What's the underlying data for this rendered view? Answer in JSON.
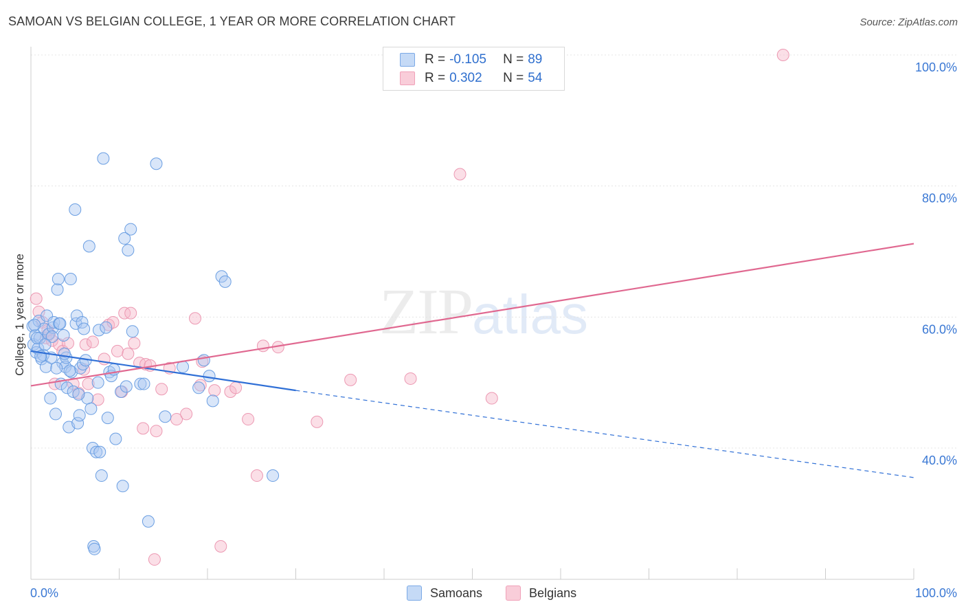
{
  "header": {
    "title": "SAMOAN VS BELGIAN COLLEGE, 1 YEAR OR MORE CORRELATION CHART",
    "source": "Source: ZipAtlas.com"
  },
  "watermark": {
    "zip": "ZIP",
    "atlas": "atlas"
  },
  "legend": {
    "rows": [
      {
        "r_label": "R =",
        "r_value": "-0.105",
        "n_label": "N =",
        "n_value": "89",
        "color": "#a9c8f0"
      },
      {
        "r_label": "R =",
        "r_value": "0.302",
        "n_label": "N =",
        "n_value": "54",
        "color": "#f6b8c9"
      }
    ]
  },
  "bottom_legend": {
    "samoans": "Samoans",
    "belgians": "Belgians"
  },
  "chart_data": {
    "type": "scatter",
    "title": "SAMOAN VS BELGIAN COLLEGE, 1 YEAR OR MORE CORRELATION CHART",
    "xlabel": "",
    "ylabel": "College, 1 year or more",
    "xlim": [
      0,
      100
    ],
    "ylim": [
      18,
      102
    ],
    "x_tick_labels": [
      "0.0%",
      "100.0%"
    ],
    "y_ticks": [
      40,
      60,
      80,
      100
    ],
    "y_tick_labels": [
      "40.0%",
      "60.0%",
      "80.0%",
      "100.0%"
    ],
    "colors": {
      "samoans": "#7aa9e6",
      "belgians": "#f0a0b8",
      "samoans_line": "#2f6fd6",
      "belgians_line": "#e06890"
    },
    "series": [
      {
        "name": "Samoans",
        "trend": {
          "x0": 0,
          "y0": 54.8,
          "x1": 30,
          "y1": 48.8,
          "dash_to_x": 100,
          "dash_to_y": 35.5
        },
        "points": [
          [
            0.2,
            58.6
          ],
          [
            0.3,
            55.8
          ],
          [
            0.5,
            57.2
          ],
          [
            0.6,
            54.6
          ],
          [
            0.8,
            55.2
          ],
          [
            0.9,
            59.4
          ],
          [
            1.0,
            56.8
          ],
          [
            1.2,
            53.6
          ],
          [
            1.4,
            54.2
          ],
          [
            1.5,
            58.2
          ],
          [
            1.7,
            52.4
          ],
          [
            1.8,
            60.2
          ],
          [
            2.0,
            57.4
          ],
          [
            2.2,
            47.6
          ],
          [
            2.3,
            53.8
          ],
          [
            2.5,
            58.4
          ],
          [
            2.6,
            59.2
          ],
          [
            2.8,
            45.2
          ],
          [
            3.0,
            64.2
          ],
          [
            3.1,
            65.8
          ],
          [
            3.2,
            59.0
          ],
          [
            3.4,
            49.8
          ],
          [
            3.6,
            53.0
          ],
          [
            3.7,
            57.2
          ],
          [
            3.9,
            52.4
          ],
          [
            4.0,
            53.8
          ],
          [
            4.1,
            49.2
          ],
          [
            4.3,
            43.2
          ],
          [
            4.5,
            65.8
          ],
          [
            4.6,
            51.6
          ],
          [
            4.8,
            48.6
          ],
          [
            5.0,
            76.4
          ],
          [
            5.1,
            59.0
          ],
          [
            5.2,
            60.2
          ],
          [
            5.3,
            43.8
          ],
          [
            5.5,
            45.0
          ],
          [
            5.6,
            52.2
          ],
          [
            5.8,
            59.2
          ],
          [
            5.9,
            52.8
          ],
          [
            6.0,
            58.2
          ],
          [
            6.4,
            47.6
          ],
          [
            6.6,
            70.8
          ],
          [
            6.8,
            46.0
          ],
          [
            7.0,
            40.0
          ],
          [
            7.1,
            25.0
          ],
          [
            7.2,
            24.6
          ],
          [
            7.4,
            39.4
          ],
          [
            7.6,
            50.0
          ],
          [
            7.7,
            58.0
          ],
          [
            7.8,
            39.4
          ],
          [
            8.0,
            35.8
          ],
          [
            8.2,
            84.2
          ],
          [
            8.5,
            58.4
          ],
          [
            8.7,
            44.6
          ],
          [
            8.9,
            51.6
          ],
          [
            9.1,
            51.0
          ],
          [
            9.6,
            41.4
          ],
          [
            10.2,
            48.6
          ],
          [
            10.4,
            34.2
          ],
          [
            10.6,
            72.0
          ],
          [
            10.8,
            49.4
          ],
          [
            11.0,
            70.2
          ],
          [
            11.3,
            73.4
          ],
          [
            11.5,
            57.8
          ],
          [
            12.4,
            49.8
          ],
          [
            12.8,
            49.8
          ],
          [
            13.3,
            28.8
          ],
          [
            14.2,
            83.4
          ],
          [
            15.2,
            44.8
          ],
          [
            17.2,
            52.4
          ],
          [
            19.0,
            49.2
          ],
          [
            19.6,
            53.4
          ],
          [
            20.2,
            51.0
          ],
          [
            20.6,
            47.2
          ],
          [
            21.6,
            66.2
          ],
          [
            22.0,
            65.4
          ],
          [
            27.4,
            35.8
          ],
          [
            0.4,
            58.8
          ],
          [
            1.1,
            54.0
          ],
          [
            2.4,
            57.0
          ],
          [
            3.3,
            59.0
          ],
          [
            4.4,
            51.8
          ],
          [
            6.2,
            53.4
          ],
          [
            0.7,
            56.8
          ],
          [
            1.6,
            55.8
          ],
          [
            2.9,
            52.2
          ],
          [
            3.8,
            54.4
          ],
          [
            5.4,
            48.2
          ],
          [
            9.4,
            52.0
          ]
        ]
      },
      {
        "name": "Belgians",
        "trend": {
          "x0": 0,
          "y0": 49.5,
          "x1": 100,
          "y1": 71.2
        },
        "points": [
          [
            0.6,
            62.8
          ],
          [
            0.9,
            60.8
          ],
          [
            1.3,
            59.2
          ],
          [
            1.7,
            56.8
          ],
          [
            1.9,
            58.0
          ],
          [
            2.1,
            57.4
          ],
          [
            2.4,
            56.4
          ],
          [
            2.7,
            49.8
          ],
          [
            3.2,
            55.8
          ],
          [
            3.6,
            54.8
          ],
          [
            4.2,
            56.0
          ],
          [
            4.8,
            49.8
          ],
          [
            5.4,
            48.4
          ],
          [
            6.0,
            52.0
          ],
          [
            6.2,
            55.8
          ],
          [
            6.5,
            49.8
          ],
          [
            7.0,
            56.2
          ],
          [
            7.6,
            47.4
          ],
          [
            8.3,
            53.6
          ],
          [
            8.8,
            58.8
          ],
          [
            9.3,
            59.2
          ],
          [
            9.8,
            54.8
          ],
          [
            10.3,
            48.6
          ],
          [
            10.6,
            60.6
          ],
          [
            11.0,
            54.4
          ],
          [
            11.3,
            60.6
          ],
          [
            11.7,
            56.0
          ],
          [
            12.3,
            53.0
          ],
          [
            12.7,
            43.0
          ],
          [
            13.0,
            52.8
          ],
          [
            13.5,
            52.6
          ],
          [
            14.2,
            42.6
          ],
          [
            14.8,
            49.0
          ],
          [
            15.7,
            52.2
          ],
          [
            16.5,
            44.4
          ],
          [
            17.6,
            45.2
          ],
          [
            18.6,
            59.8
          ],
          [
            19.2,
            49.6
          ],
          [
            19.4,
            53.2
          ],
          [
            20.8,
            48.8
          ],
          [
            21.5,
            25.0
          ],
          [
            22.6,
            48.6
          ],
          [
            23.2,
            49.2
          ],
          [
            24.6,
            44.4
          ],
          [
            25.6,
            35.8
          ],
          [
            26.3,
            55.6
          ],
          [
            28.0,
            55.4
          ],
          [
            32.4,
            44.0
          ],
          [
            36.2,
            50.4
          ],
          [
            43.0,
            50.6
          ],
          [
            48.6,
            81.8
          ],
          [
            52.2,
            47.6
          ],
          [
            85.2,
            100.0
          ],
          [
            14.0,
            23.0
          ]
        ]
      }
    ]
  }
}
